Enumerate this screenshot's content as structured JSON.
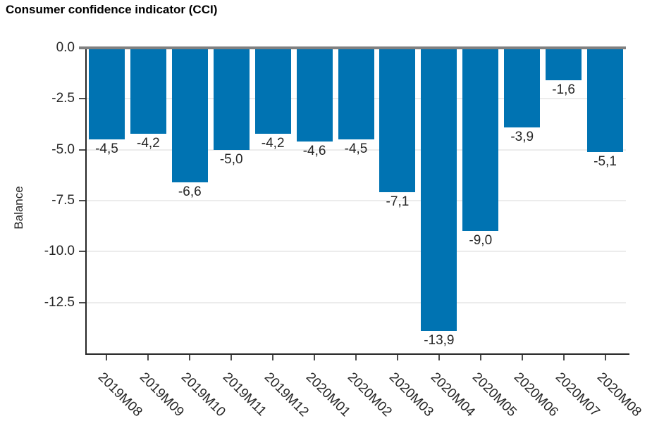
{
  "title": "Consumer confidence indicator (CCI)",
  "chart_data": {
    "type": "bar",
    "title": "Consumer confidence indicator (CCI)",
    "ylabel": "Balance",
    "xlabel": "",
    "categories": [
      "2019M08",
      "2019M09",
      "2019M10",
      "2019M11",
      "2019M12",
      "2020M01",
      "2020M02",
      "2020M03",
      "2020M04",
      "2020M05",
      "2020M06",
      "2020M07",
      "2020M08"
    ],
    "values": [
      -4.5,
      -4.2,
      -6.6,
      -5.0,
      -4.2,
      -4.6,
      -4.5,
      -7.1,
      -13.9,
      -9.0,
      -3.9,
      -1.6,
      -5.1
    ],
    "value_labels": [
      "-4,5",
      "-4,2",
      "-6,6",
      "-5,0",
      "-4,2",
      "-4,6",
      "-4,5",
      "-7,1",
      "-13,9",
      "-9,0",
      "-3,9",
      "-1,6",
      "-5,1"
    ],
    "ylim": [
      -15,
      0
    ],
    "yticks": [
      0,
      -2.5,
      -5,
      -7.5,
      -10,
      -12.5
    ],
    "ytick_labels": [
      "0.0",
      "-2.5",
      "-5.0",
      "-7.5",
      "-10.0",
      "-12.5"
    ],
    "grid": true,
    "legend": "none",
    "colors": {
      "bar": "#0073b2",
      "zero_line": "#808080",
      "grid": "#ececec",
      "axis": "#262626",
      "tick": "#4d4d4d",
      "text": "#262626",
      "title_text": "#000000"
    }
  }
}
